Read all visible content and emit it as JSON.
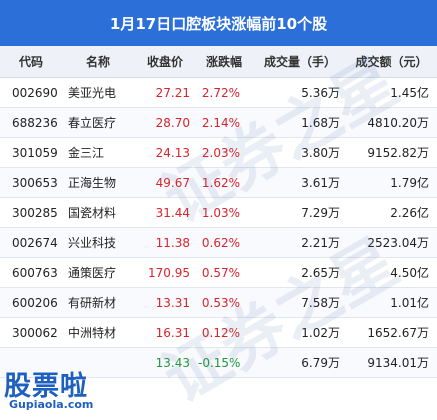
{
  "title": "1月17日口腔板块涨幅前10个股",
  "headers": {
    "code": "代码",
    "name": "名称",
    "price": "收盘价",
    "change": "涨跌幅",
    "volume": "成交量（手）",
    "amount": "成交额（元）"
  },
  "rows": [
    {
      "code": "002690",
      "name": "美亚光电",
      "price": "27.21",
      "change": "2.72%",
      "volume": "5.36万",
      "amount": "1.45亿",
      "direction": "up"
    },
    {
      "code": "688236",
      "name": "春立医疗",
      "price": "28.70",
      "change": "2.14%",
      "volume": "1.68万",
      "amount": "4810.20万",
      "direction": "up"
    },
    {
      "code": "301059",
      "name": "金三江",
      "price": "24.13",
      "change": "2.03%",
      "volume": "3.80万",
      "amount": "9152.82万",
      "direction": "up"
    },
    {
      "code": "300653",
      "name": "正海生物",
      "price": "49.67",
      "change": "1.62%",
      "volume": "3.61万",
      "amount": "1.79亿",
      "direction": "up"
    },
    {
      "code": "300285",
      "name": "国瓷材料",
      "price": "31.44",
      "change": "1.03%",
      "volume": "7.29万",
      "amount": "2.26亿",
      "direction": "up"
    },
    {
      "code": "002674",
      "name": "兴业科技",
      "price": "11.38",
      "change": "0.62%",
      "volume": "2.21万",
      "amount": "2523.04万",
      "direction": "up"
    },
    {
      "code": "600763",
      "name": "通策医疗",
      "price": "170.95",
      "change": "0.57%",
      "volume": "2.65万",
      "amount": "4.50亿",
      "direction": "up"
    },
    {
      "code": "600206",
      "name": "有研新材",
      "price": "13.31",
      "change": "0.53%",
      "volume": "7.58万",
      "amount": "1.01亿",
      "direction": "up"
    },
    {
      "code": "300062",
      "name": "中洲特材",
      "price": "16.31",
      "change": "0.12%",
      "volume": "1.02万",
      "amount": "1652.67万",
      "direction": "up"
    },
    {
      "code": "",
      "name": "",
      "price": "13.43",
      "change": "-0.15%",
      "volume": "6.79万",
      "amount": "9134.01万",
      "direction": "down"
    }
  ],
  "logo": {
    "text": "股票啦",
    "url": "Gupiaola.com"
  },
  "watermark": "证券之星",
  "colors": {
    "title_bg": "#2c6fd8",
    "up": "#d9232b",
    "down": "#1f9a3a",
    "logo": "#1e5fc2"
  }
}
